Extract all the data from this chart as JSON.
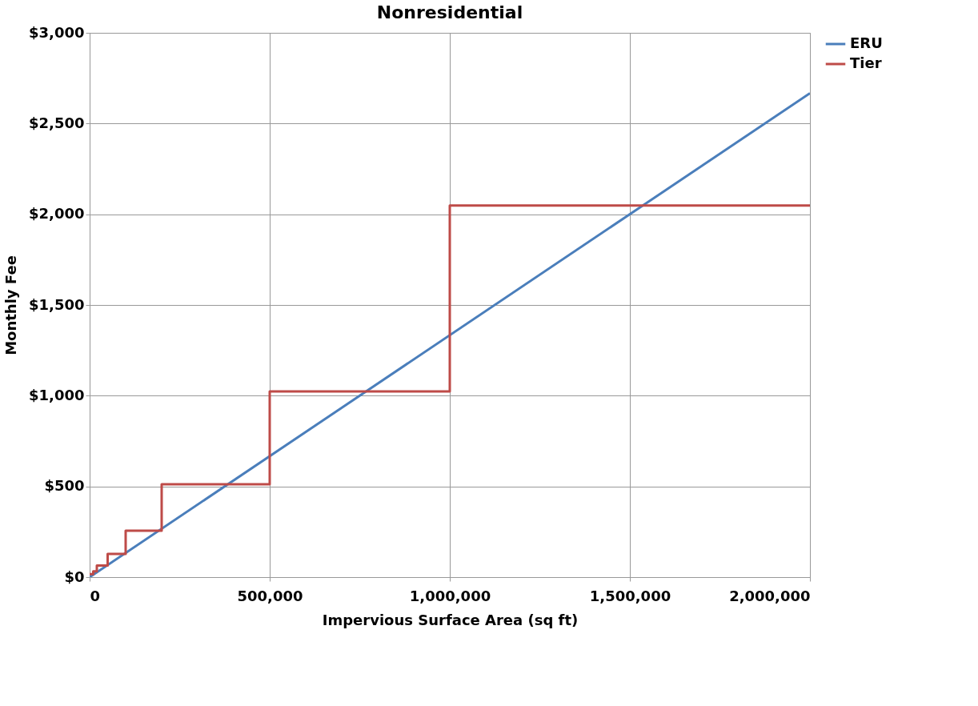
{
  "chart_data": {
    "type": "line",
    "title": "Nonresidential",
    "xlabel": "Impervious Surface Area (sq ft)",
    "ylabel": "Monthly Fee",
    "xlim": [
      0,
      2000000
    ],
    "xticks": [
      0,
      {
        "value": 500000,
        "label": "500,000"
      },
      {
        "value": 1000000,
        "label": "1,000,000"
      },
      {
        "value": 1500000,
        "label": "1,500,000"
      },
      {
        "value": 2000000,
        "label": "2,000,000"
      }
    ],
    "ylim": [
      0,
      3000
    ],
    "yticks": [
      {
        "value": 0,
        "label": "$0"
      },
      {
        "value": 500,
        "label": "$500"
      },
      {
        "value": 1000,
        "label": "$1,000"
      },
      {
        "value": 1500,
        "label": "$1,500"
      },
      {
        "value": 2000,
        "label": "$2,000"
      },
      {
        "value": 2500,
        "label": "$2,500"
      },
      {
        "value": 3000,
        "label": "$3,000"
      }
    ],
    "grid": true,
    "legend": "right",
    "marker": "none",
    "line_style": "solid",
    "series": [
      {
        "name": "ERU",
        "color": "#4a7ebb",
        "x": [
          0,
          2000000
        ],
        "values": [
          0,
          2667
        ]
      },
      {
        "name": "Tier",
        "color": "#be4b48",
        "type": "step",
        "x": [
          0,
          10000,
          20000,
          50000,
          100000,
          200000,
          500000,
          1000000,
          2000000
        ],
        "values": [
          16,
          32,
          64,
          128,
          256,
          512,
          1024,
          2048,
          2048
        ]
      }
    ]
  }
}
